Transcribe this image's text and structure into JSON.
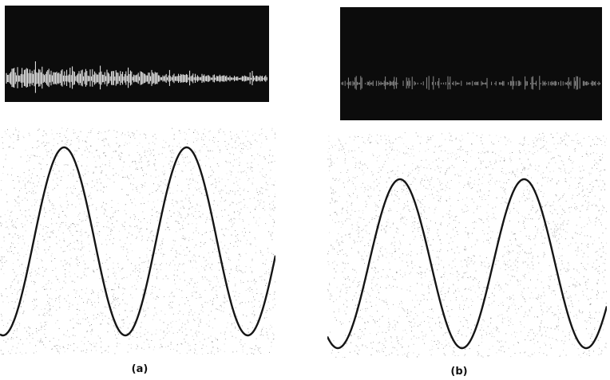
{
  "figure": {
    "panels": [
      {
        "id": "a",
        "caption": "(a)",
        "scope_screen": {
          "background": "#0c0c0c",
          "spikes": "#f2f2f2",
          "burst_strength": 1.0
        },
        "waveform": {
          "cycles_visible": 2.25,
          "stroke": "#151515",
          "speckle": "#7a7a7a"
        }
      },
      {
        "id": "b",
        "caption": "(b)",
        "scope_screen": {
          "background": "#0c0c0c",
          "spikes": "#8c8c8c",
          "burst_strength": 0.35
        },
        "waveform": {
          "cycles_visible": 2.25,
          "stroke": "#151515",
          "speckle": "#7a7a7a"
        }
      }
    ]
  }
}
